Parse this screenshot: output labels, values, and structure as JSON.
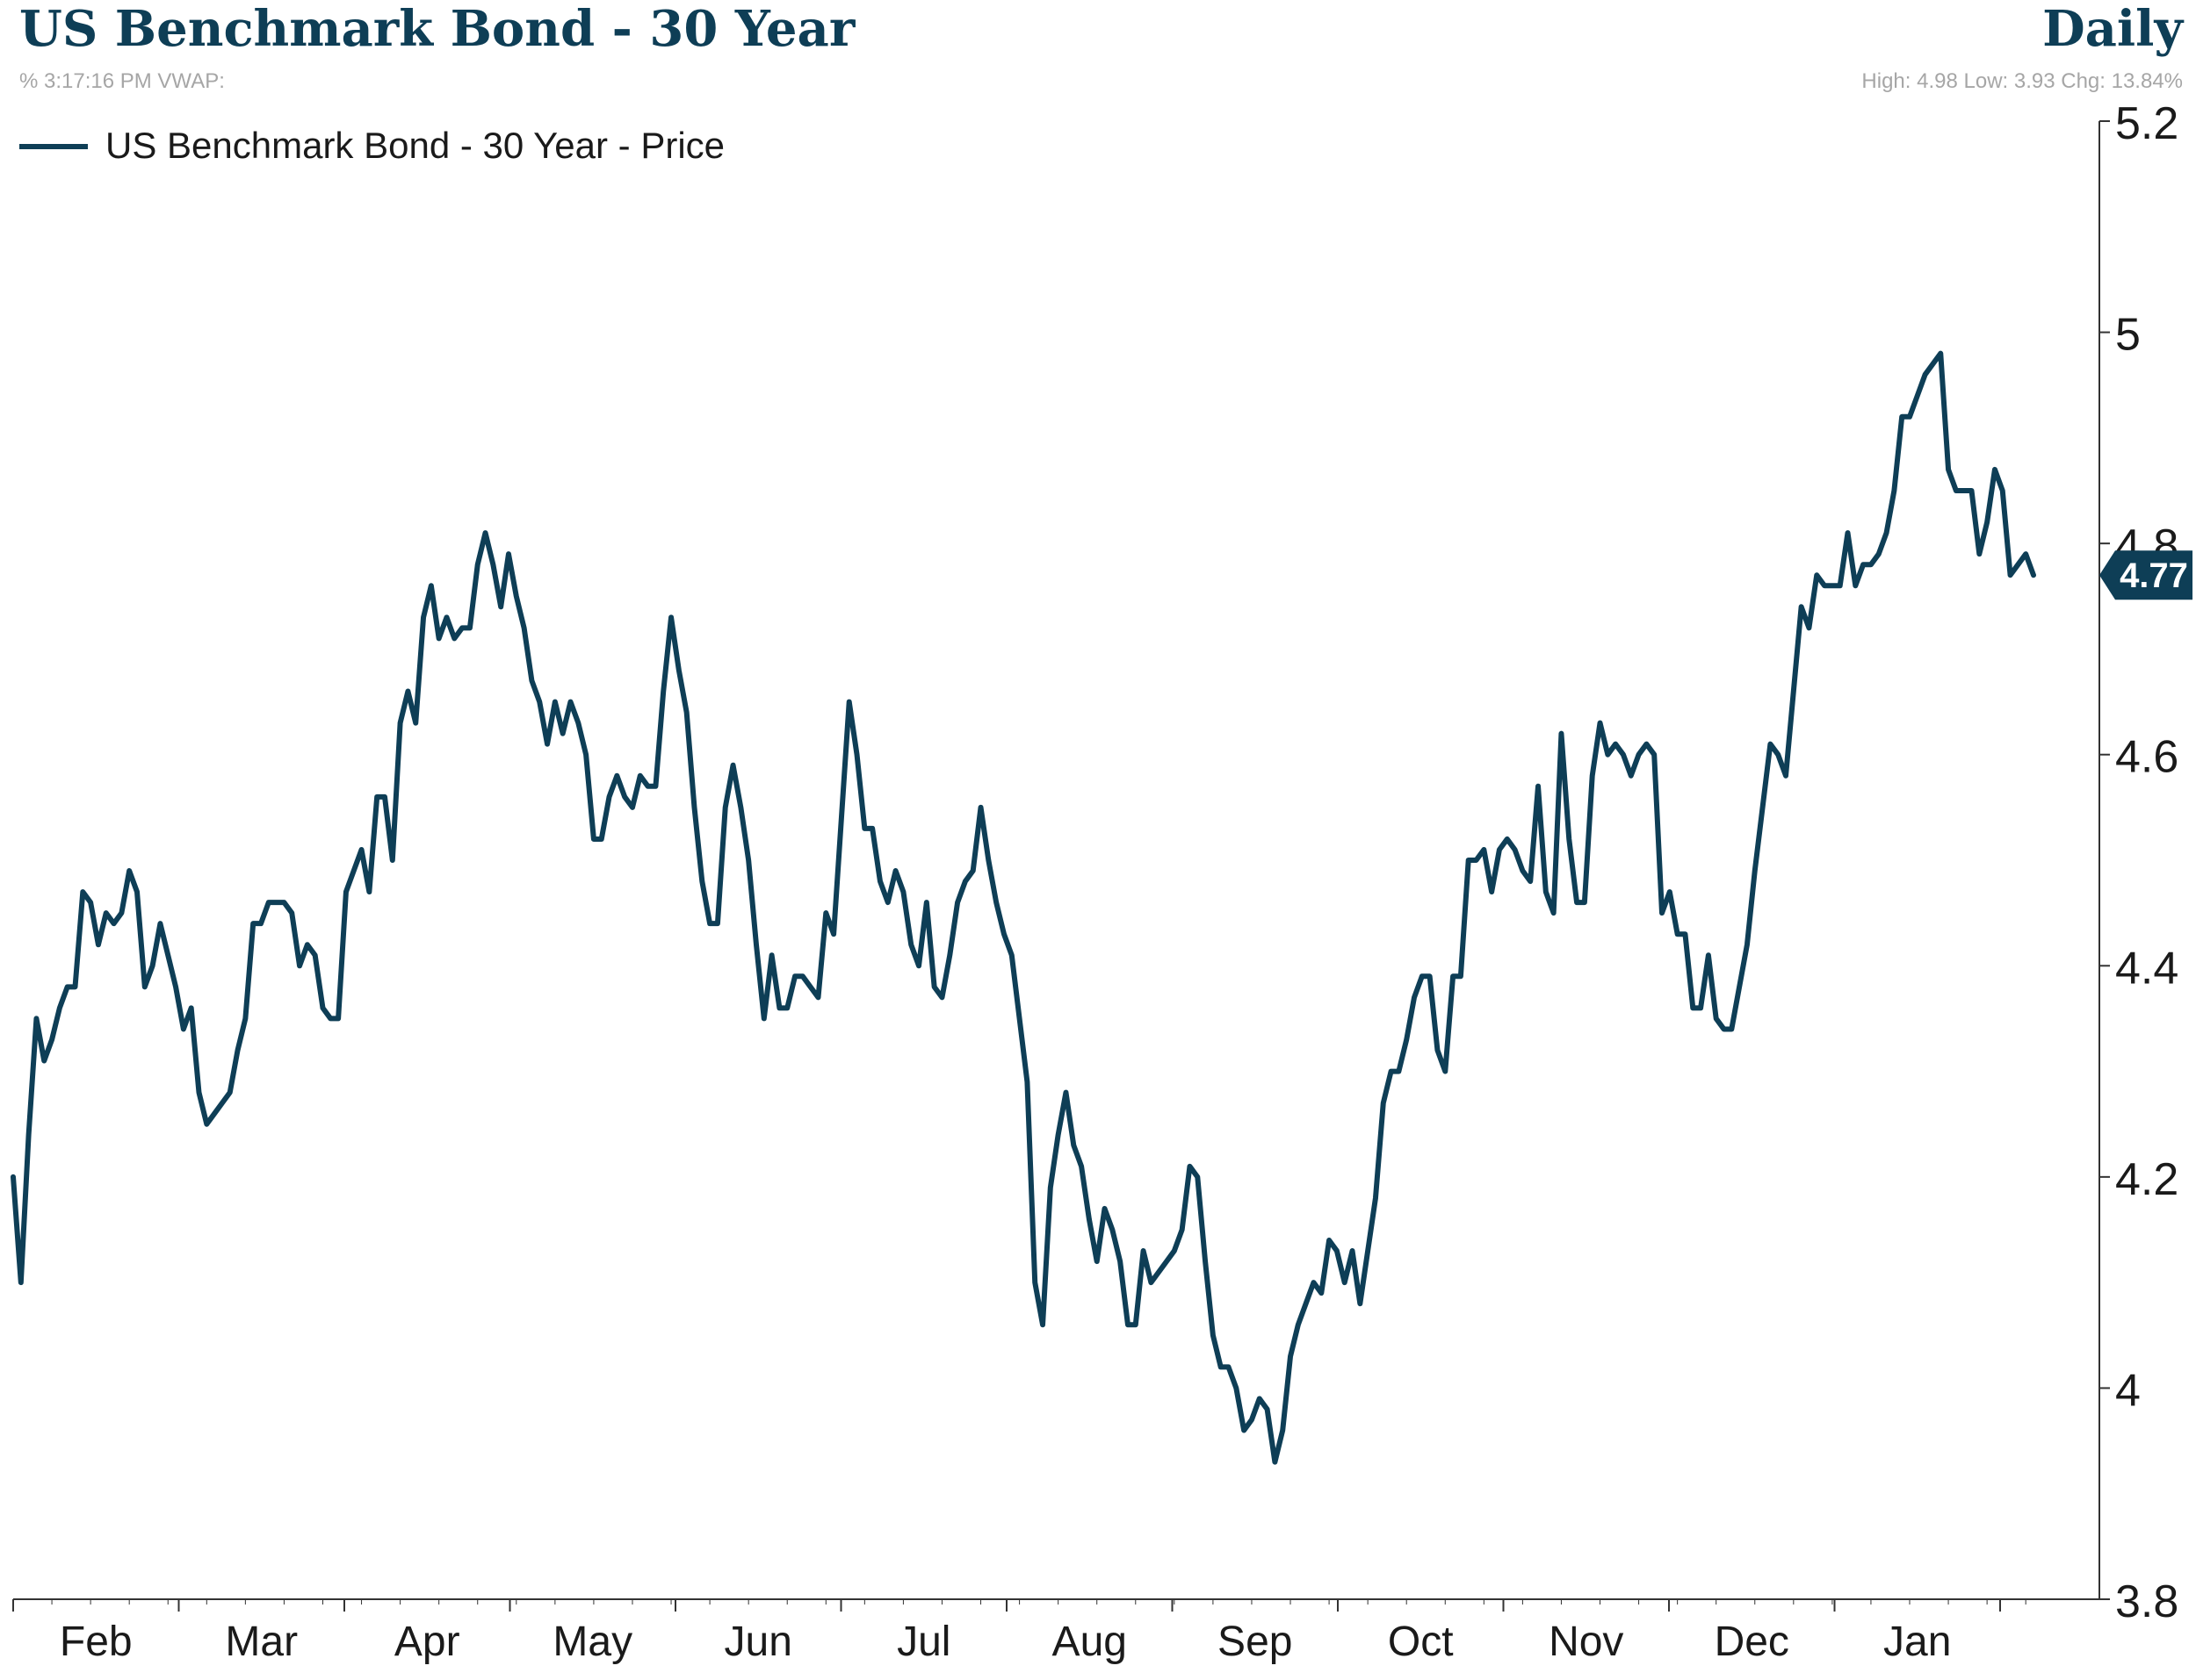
{
  "header": {
    "title": "US Benchmark Bond - 30 Year",
    "frequency": "Daily",
    "subtitle_left": "% 3:17:16 PM VWAP:",
    "subtitle_right": "High: 4.98 Low: 3.93 Chg: 13.84%"
  },
  "colors": {
    "line": "#0e3e56",
    "title": "#0e3e56",
    "subtitle": "#a6a6a6",
    "axis": "#333333",
    "badge_bg": "#0e3e56",
    "badge_text": "#ffffff"
  },
  "chart_data": {
    "type": "line",
    "title": "US Benchmark Bond - 30 Year",
    "xlabel": "",
    "ylabel": "",
    "ylim": [
      3.8,
      5.2
    ],
    "y_ticks": [
      3.8,
      4,
      4.2,
      4.4,
      4.6,
      4.8,
      5,
      5.2
    ],
    "y_tick_labels": [
      "3.8",
      "4",
      "4.2",
      "4.4",
      "4.6",
      "4.8",
      "5",
      "5.2"
    ],
    "x_tick_labels": [
      "Feb",
      "Mar",
      "Apr",
      "May",
      "Jun",
      "Jul",
      "Aug",
      "Sep",
      "Oct",
      "Nov",
      "Dec",
      "Jan"
    ],
    "grid": false,
    "legend": "top-left",
    "last_value": 4.77,
    "last_value_label": "4.77",
    "series": [
      {
        "name": "US Benchmark Bond - 30 Year - Price",
        "values": [
          4.2,
          4.1,
          4.24,
          4.35,
          4.31,
          4.33,
          4.36,
          4.38,
          4.38,
          4.47,
          4.46,
          4.42,
          4.45,
          4.44,
          4.45,
          4.49,
          4.47,
          4.38,
          4.4,
          4.44,
          4.41,
          4.38,
          4.34,
          4.36,
          4.28,
          4.25,
          4.26,
          4.27,
          4.28,
          4.32,
          4.35,
          4.44,
          4.44,
          4.46,
          4.46,
          4.46,
          4.45,
          4.4,
          4.42,
          4.41,
          4.36,
          4.35,
          4.35,
          4.47,
          4.49,
          4.51,
          4.47,
          4.56,
          4.56,
          4.5,
          4.63,
          4.66,
          4.63,
          4.73,
          4.76,
          4.71,
          4.73,
          4.71,
          4.72,
          4.72,
          4.78,
          4.81,
          4.78,
          4.74,
          4.79,
          4.75,
          4.72,
          4.67,
          4.65,
          4.61,
          4.65,
          4.62,
          4.65,
          4.63,
          4.6,
          4.52,
          4.52,
          4.56,
          4.58,
          4.56,
          4.55,
          4.58,
          4.57,
          4.57,
          4.66,
          4.73,
          4.68,
          4.64,
          4.55,
          4.48,
          4.44,
          4.44,
          4.55,
          4.59,
          4.55,
          4.5,
          4.42,
          4.35,
          4.41,
          4.36,
          4.36,
          4.39,
          4.39,
          4.38,
          4.37,
          4.45,
          4.43,
          4.54,
          4.65,
          4.6,
          4.53,
          4.53,
          4.48,
          4.46,
          4.49,
          4.47,
          4.42,
          4.4,
          4.46,
          4.38,
          4.37,
          4.41,
          4.46,
          4.48,
          4.49,
          4.55,
          4.5,
          4.46,
          4.43,
          4.41,
          4.35,
          4.29,
          4.1,
          4.06,
          4.19,
          4.24,
          4.28,
          4.23,
          4.21,
          4.16,
          4.12,
          4.17,
          4.15,
          4.12,
          4.06,
          4.06,
          4.13,
          4.1,
          4.11,
          4.12,
          4.13,
          4.15,
          4.21,
          4.2,
          4.12,
          4.05,
          4.02,
          4.02,
          4.0,
          3.96,
          3.97,
          3.99,
          3.98,
          3.93,
          3.96,
          4.03,
          4.06,
          4.08,
          4.1,
          4.09,
          4.14,
          4.13,
          4.1,
          4.13,
          4.08,
          4.13,
          4.18,
          4.27,
          4.3,
          4.3,
          4.33,
          4.37,
          4.39,
          4.39,
          4.32,
          4.3,
          4.39,
          4.39,
          4.5,
          4.5,
          4.51,
          4.47,
          4.51,
          4.52,
          4.51,
          4.49,
          4.48,
          4.57,
          4.47,
          4.45,
          4.62,
          4.52,
          4.46,
          4.46,
          4.58,
          4.63,
          4.6,
          4.61,
          4.6,
          4.58,
          4.6,
          4.61,
          4.6,
          4.45,
          4.47,
          4.43,
          4.43,
          4.36,
          4.36,
          4.41,
          4.35,
          4.34,
          4.34,
          4.38,
          4.42,
          4.49,
          4.55,
          4.61,
          4.6,
          4.58,
          4.66,
          4.74,
          4.72,
          4.77,
          4.76,
          4.76,
          4.76,
          4.81,
          4.76,
          4.78,
          4.78,
          4.79,
          4.81,
          4.85,
          4.92,
          4.92,
          4.94,
          4.96,
          4.97,
          4.98,
          4.87,
          4.85,
          4.85,
          4.85,
          4.79,
          4.82,
          4.87,
          4.85,
          4.77,
          4.78,
          4.79,
          4.77
        ]
      }
    ]
  }
}
